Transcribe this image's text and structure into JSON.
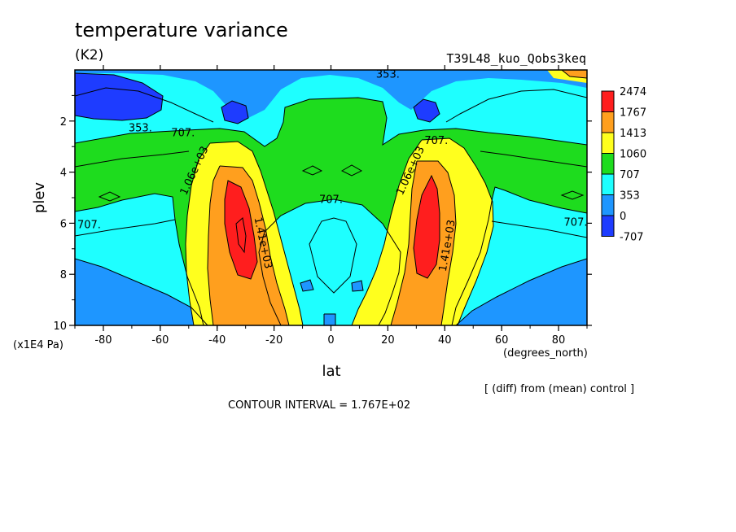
{
  "chart_data": {
    "type": "contour",
    "title": "temperature variance",
    "units": "(K2)",
    "run_label": "T39L48_kuo_Qobs3keq",
    "xlabel": "lat",
    "x_units": "(degrees_north)",
    "ylabel": "plev",
    "y_units": "(x1E4 Pa)",
    "xlim": [
      -90,
      90
    ],
    "ylim": [
      10,
      0
    ],
    "x_ticks": [
      -80,
      -60,
      -40,
      -20,
      0,
      20,
      40,
      60,
      80
    ],
    "x_tick_labels": [
      "-80",
      "-60",
      "-40",
      "-20",
      "0",
      "20",
      "40",
      "60",
      "80"
    ],
    "y_ticks": [
      2,
      4,
      6,
      8,
      10
    ],
    "y_tick_labels": [
      "2",
      "4",
      "6",
      "8",
      "10"
    ],
    "colorbar": {
      "labels": [
        "2474",
        "1767",
        "1413",
        "1060",
        "707",
        "353",
        "0",
        "-707"
      ],
      "colors": [
        "#ff1e1e",
        "#ff9f1e",
        "#ffff1e",
        "#1edc1e",
        "#1effff",
        "#1e96ff",
        "#1e3cff"
      ]
    },
    "contour_labels": [
      {
        "text": "353.",
        "lat": 20,
        "plev": 0.3
      },
      {
        "text": "353.",
        "lat": -67,
        "plev": 2.4
      },
      {
        "text": "707.",
        "lat": -52,
        "plev": 2.6
      },
      {
        "text": "707.",
        "lat": 37,
        "plev": 2.9
      },
      {
        "text": "707.",
        "lat": 0,
        "plev": 5.2
      },
      {
        "text": "707.",
        "lat": -85,
        "plev": 6.2
      },
      {
        "text": "707.",
        "lat": 86,
        "plev": 6.1
      },
      {
        "text": "1.06e+03",
        "lat": -47,
        "plev": 4.0
      },
      {
        "text": "1.06e+03",
        "lat": 29,
        "plev": 4.0
      },
      {
        "text": "1.41e+03",
        "lat": -25,
        "plev": 6.8
      },
      {
        "text": "1.41e+03",
        "lat": 42,
        "plev": 6.9
      }
    ],
    "footer_right": "[ (diff) from (mean) control ]",
    "contour_interval": "CONTOUR INTERVAL = 1.767E+02"
  }
}
